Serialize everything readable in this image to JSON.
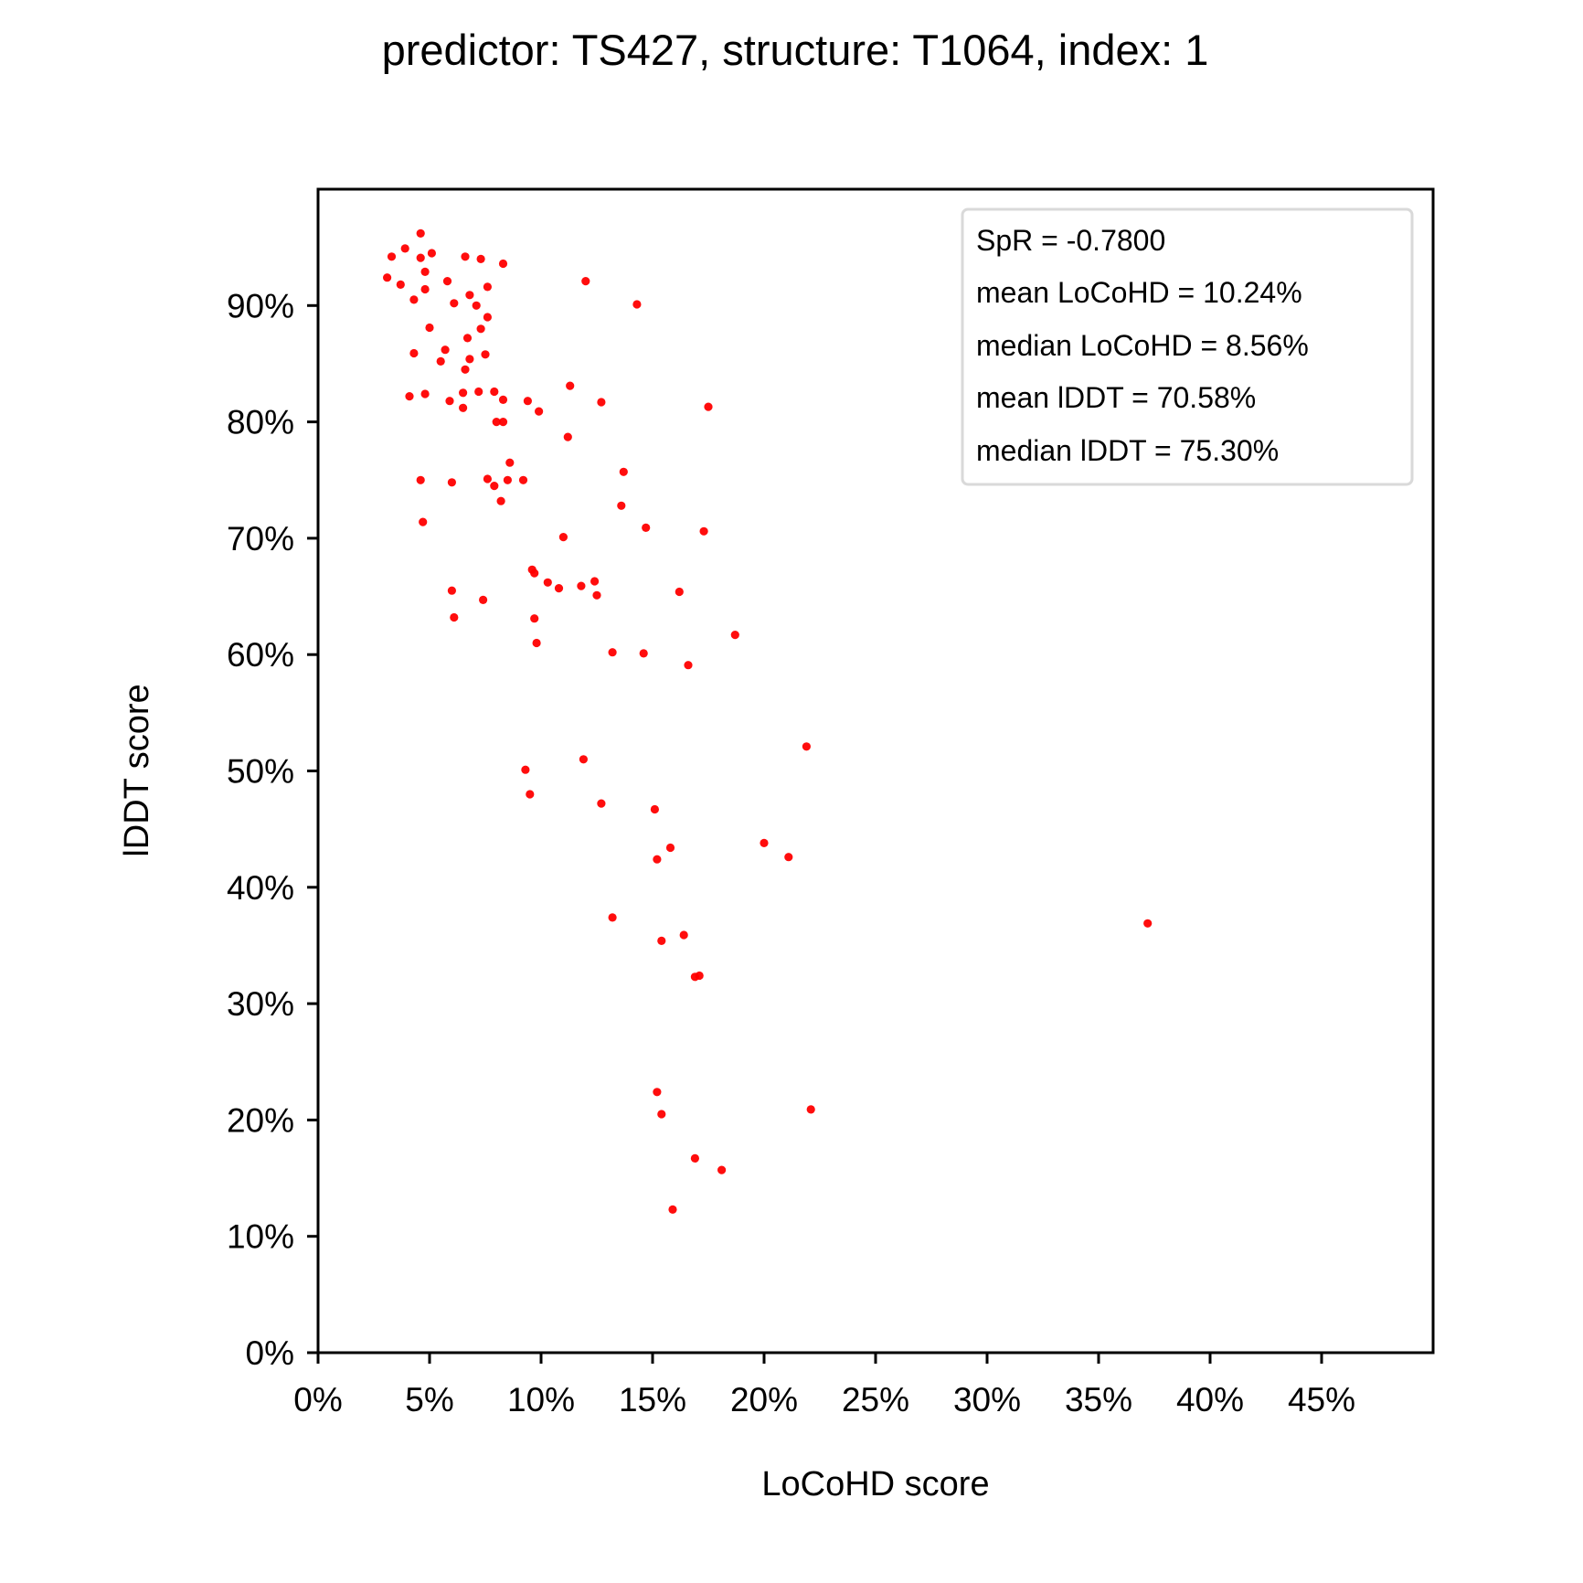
{
  "chart_data": {
    "type": "scatter",
    "title": "predictor: TS427, structure: T1064, index: 1",
    "xlabel": "LoCoHD score",
    "ylabel": "lDDT score",
    "xlim": [
      0,
      0.5
    ],
    "ylim": [
      0,
      1.0
    ],
    "x_ticks": [
      0,
      0.05,
      0.1,
      0.15,
      0.2,
      0.25,
      0.3,
      0.35,
      0.4,
      0.45
    ],
    "x_tick_labels": [
      "0%",
      "5%",
      "10%",
      "15%",
      "20%",
      "25%",
      "30%",
      "35%",
      "40%",
      "45%"
    ],
    "y_ticks": [
      0,
      0.1,
      0.2,
      0.3,
      0.4,
      0.5,
      0.6,
      0.7,
      0.8,
      0.9
    ],
    "y_tick_labels": [
      "0%",
      "10%",
      "20%",
      "30%",
      "40%",
      "50%",
      "60%",
      "70%",
      "80%",
      "90%"
    ],
    "grid": false,
    "legend_position": "top-right",
    "marker_color": "#ff0000",
    "annotations": [
      "SpR = -0.7800",
      "mean LoCoHD = 10.24%",
      "median LoCoHD = 8.56%",
      "mean lDDT = 70.58%",
      "median lDDT = 75.30%"
    ],
    "series": [
      {
        "points": [
          [
            0.046,
            0.962
          ],
          [
            0.039,
            0.949
          ],
          [
            0.033,
            0.942
          ],
          [
            0.046,
            0.941
          ],
          [
            0.051,
            0.945
          ],
          [
            0.066,
            0.942
          ],
          [
            0.073,
            0.94
          ],
          [
            0.083,
            0.936
          ],
          [
            0.031,
            0.924
          ],
          [
            0.048,
            0.929
          ],
          [
            0.058,
            0.921
          ],
          [
            0.037,
            0.918
          ],
          [
            0.048,
            0.914
          ],
          [
            0.043,
            0.905
          ],
          [
            0.068,
            0.909
          ],
          [
            0.076,
            0.916
          ],
          [
            0.12,
            0.921
          ],
          [
            0.061,
            0.902
          ],
          [
            0.071,
            0.9
          ],
          [
            0.143,
            0.901
          ],
          [
            0.076,
            0.89
          ],
          [
            0.05,
            0.881
          ],
          [
            0.073,
            0.88
          ],
          [
            0.067,
            0.872
          ],
          [
            0.043,
            0.859
          ],
          [
            0.057,
            0.862
          ],
          [
            0.055,
            0.852
          ],
          [
            0.068,
            0.854
          ],
          [
            0.075,
            0.858
          ],
          [
            0.066,
            0.845
          ],
          [
            0.113,
            0.831
          ],
          [
            0.041,
            0.822
          ],
          [
            0.048,
            0.824
          ],
          [
            0.059,
            0.818
          ],
          [
            0.065,
            0.825
          ],
          [
            0.072,
            0.826
          ],
          [
            0.079,
            0.826
          ],
          [
            0.083,
            0.819
          ],
          [
            0.065,
            0.812
          ],
          [
            0.094,
            0.818
          ],
          [
            0.127,
            0.817
          ],
          [
            0.175,
            0.813
          ],
          [
            0.099,
            0.809
          ],
          [
            0.08,
            0.8
          ],
          [
            0.083,
            0.8
          ],
          [
            0.112,
            0.787
          ],
          [
            0.086,
            0.765
          ],
          [
            0.137,
            0.757
          ],
          [
            0.046,
            0.75
          ],
          [
            0.06,
            0.748
          ],
          [
            0.076,
            0.751
          ],
          [
            0.079,
            0.745
          ],
          [
            0.085,
            0.75
          ],
          [
            0.092,
            0.75
          ],
          [
            0.082,
            0.732
          ],
          [
            0.136,
            0.728
          ],
          [
            0.047,
            0.714
          ],
          [
            0.147,
            0.709
          ],
          [
            0.173,
            0.706
          ],
          [
            0.11,
            0.701
          ],
          [
            0.096,
            0.673
          ],
          [
            0.097,
            0.67
          ],
          [
            0.103,
            0.662
          ],
          [
            0.108,
            0.657
          ],
          [
            0.118,
            0.659
          ],
          [
            0.124,
            0.663
          ],
          [
            0.125,
            0.651
          ],
          [
            0.06,
            0.655
          ],
          [
            0.074,
            0.647
          ],
          [
            0.162,
            0.654
          ],
          [
            0.061,
            0.632
          ],
          [
            0.097,
            0.631
          ],
          [
            0.187,
            0.617
          ],
          [
            0.098,
            0.61
          ],
          [
            0.132,
            0.602
          ],
          [
            0.146,
            0.601
          ],
          [
            0.166,
            0.591
          ],
          [
            0.219,
            0.521
          ],
          [
            0.119,
            0.51
          ],
          [
            0.093,
            0.501
          ],
          [
            0.095,
            0.48
          ],
          [
            0.127,
            0.472
          ],
          [
            0.151,
            0.467
          ],
          [
            0.2,
            0.438
          ],
          [
            0.158,
            0.434
          ],
          [
            0.211,
            0.426
          ],
          [
            0.152,
            0.424
          ],
          [
            0.132,
            0.374
          ],
          [
            0.372,
            0.369
          ],
          [
            0.164,
            0.359
          ],
          [
            0.154,
            0.354
          ],
          [
            0.169,
            0.323
          ],
          [
            0.171,
            0.324
          ],
          [
            0.152,
            0.224
          ],
          [
            0.221,
            0.209
          ],
          [
            0.154,
            0.205
          ],
          [
            0.169,
            0.167
          ],
          [
            0.181,
            0.157
          ],
          [
            0.159,
            0.123
          ]
        ]
      }
    ]
  }
}
